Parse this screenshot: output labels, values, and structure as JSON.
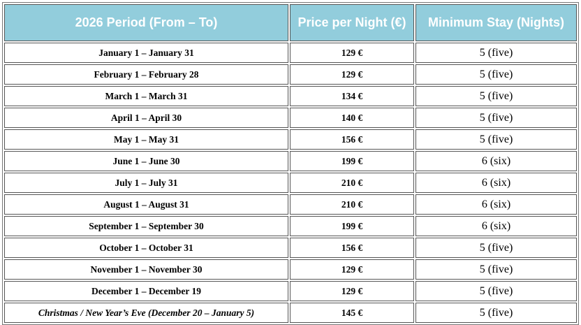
{
  "table": {
    "header": [
      "2026 Period (From – To)",
      "Price per Night (€)",
      "Minimum Stay (Nights)"
    ],
    "rows": [
      [
        "January 1 – January 31",
        "129 €",
        "5 (five)"
      ],
      [
        "February 1 – February 28",
        "129 €",
        "5 (five)"
      ],
      [
        "March 1 – March 31",
        "134 €",
        "5 (five)"
      ],
      [
        "April 1 – April 30",
        "140 €",
        "5 (five)"
      ],
      [
        "May 1 – May 31",
        "156 €",
        "5 (five)"
      ],
      [
        "June 1 – June 30",
        "199 €",
        "6 (six)"
      ],
      [
        "July 1 – July 31",
        "210 €",
        "6 (six)"
      ],
      [
        "August 1 – August 31",
        "210 €",
        "6 (six)"
      ],
      [
        "September 1 – September 30",
        "199 €",
        "6 (six)"
      ],
      [
        "October 1 – October 31",
        "156 €",
        "5 (five)"
      ],
      [
        "November 1 – November 30",
        "129 €",
        "5 (five)"
      ],
      [
        "December 1 – December 19",
        "129 €",
        "5 (five)"
      ],
      [
        "Christmas / New Year’s Eve (December 20 – January 5)",
        "145 €",
        "5 (five)"
      ]
    ]
  }
}
